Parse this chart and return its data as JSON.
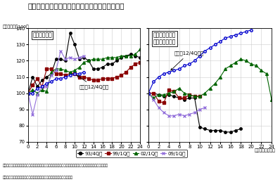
{
  "title": "図表２　今回の景気回復局面では建設投資が強い",
  "ylabel_note": "（景気の谷＝100）",
  "xlabel_note": "（経過四半期数）",
  "left_box_label": "資本財総供給",
  "right_box_label": "建設工事出来高\n（民間非居住）",
  "annotation_left": "今回（12/4Q～）",
  "annotation_right": "今回（12/4Q～）",
  "note1": "（注）建設工事出来高（民間非居住）は建設工事デフレーターで実質化し、ニッセイ基礎研究所が季節調整",
  "note2": "（資料）経済産業省「鉱工業総供給表」、国土交通省「建設総合統計」",
  "legend": [
    "93/4Q～",
    "99/1Q～",
    "02/1Q～",
    "09/1Q～"
  ],
  "ylim": [
    70,
    140
  ],
  "yticks": [
    70,
    80,
    90,
    100,
    110,
    120,
    130,
    140
  ],
  "xticks": [
    0,
    2,
    4,
    6,
    8,
    10,
    12,
    14,
    16,
    18,
    20,
    22,
    24
  ],
  "left_93": [
    100,
    110,
    104,
    108,
    110,
    112,
    121,
    121,
    120,
    137,
    130,
    121,
    122,
    120,
    115,
    115,
    116,
    118,
    118,
    120,
    122,
    123,
    124,
    123,
    122
  ],
  "left_99": [
    100,
    105,
    109,
    104,
    115,
    115,
    112,
    112,
    111,
    112,
    112,
    110,
    110,
    109,
    108,
    108,
    109,
    109,
    109,
    110,
    111,
    113,
    116,
    118,
    119
  ],
  "left_02": [
    100,
    102,
    100,
    102,
    101,
    113,
    115,
    115,
    114,
    113,
    114,
    116,
    119,
    120,
    121,
    121,
    121,
    122,
    122,
    122,
    123,
    123,
    123,
    124,
    127
  ],
  "left_09": [
    100,
    87,
    99,
    104,
    104,
    111,
    114,
    126,
    121,
    122,
    121,
    122,
    123,
    null,
    null,
    null,
    null,
    null,
    null,
    null,
    null,
    null,
    null,
    null,
    null
  ],
  "current_left": [
    100,
    100,
    103,
    104,
    106,
    107,
    109,
    109,
    110,
    111,
    112,
    112,
    113,
    null,
    null,
    null,
    null,
    null,
    null,
    null,
    null,
    null,
    null,
    null,
    null
  ],
  "right_93": [
    100,
    100,
    99,
    98,
    99,
    98,
    97,
    96,
    97,
    97,
    79,
    78,
    77,
    77,
    77,
    76,
    76,
    77,
    78,
    null,
    null,
    null,
    null,
    null,
    null
  ],
  "right_99": [
    100,
    100,
    95,
    94,
    102,
    101,
    97,
    97,
    99,
    98,
    98,
    null,
    null,
    null,
    null,
    null,
    null,
    null,
    null,
    null,
    null,
    null,
    null,
    null,
    null
  ],
  "right_02": [
    100,
    97,
    99,
    99,
    100,
    101,
    103,
    100,
    99,
    98,
    98,
    100,
    103,
    106,
    110,
    115,
    117,
    119,
    121,
    120,
    118,
    117,
    114,
    112,
    96
  ],
  "right_09": [
    100,
    96,
    91,
    88,
    86,
    86,
    87,
    86,
    87,
    88,
    90,
    91,
    null,
    null,
    null,
    null,
    null,
    null,
    null,
    null,
    null,
    null,
    null,
    null,
    null
  ],
  "current_right": [
    100,
    107,
    110,
    112,
    113,
    114,
    115,
    117,
    118,
    120,
    123,
    126,
    128,
    130,
    132,
    134,
    135,
    136,
    137,
    138,
    139,
    null,
    null,
    null,
    null
  ]
}
